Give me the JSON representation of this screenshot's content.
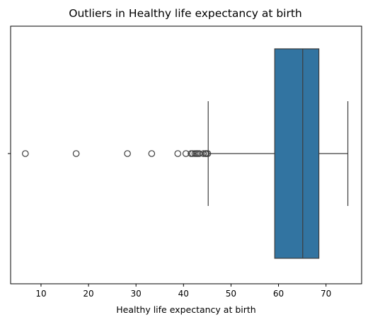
{
  "chart_data": {
    "type": "boxplot",
    "orientation": "horizontal",
    "title": "Outliers in Healthy life expectancy at birth",
    "xlabel": "Healthy life expectancy at birth",
    "ylabel": "",
    "xlim": [
      3.6,
      77.5
    ],
    "xticks": [
      10,
      20,
      30,
      40,
      50,
      60,
      70
    ],
    "xtick_labels": [
      "10",
      "20",
      "30",
      "40",
      "50",
      "60",
      "70"
    ],
    "ytick_labels": [
      ""
    ],
    "grid": false,
    "legend": "none",
    "box": {
      "whisker_low": 45.2,
      "q1": 59.2,
      "median": 65.1,
      "q3": 68.5,
      "whisker_high": 74.6
    },
    "outliers": [
      6.7,
      17.4,
      28.2,
      33.3,
      38.8,
      40.5,
      41.6,
      41.9,
      42.4,
      42.7,
      43.0,
      43.3,
      44.2,
      44.6,
      44.8,
      45.1
    ],
    "colors": {
      "box_fill": "#3274a1",
      "lines": "#3d3d3d",
      "axis": "#000000"
    }
  }
}
